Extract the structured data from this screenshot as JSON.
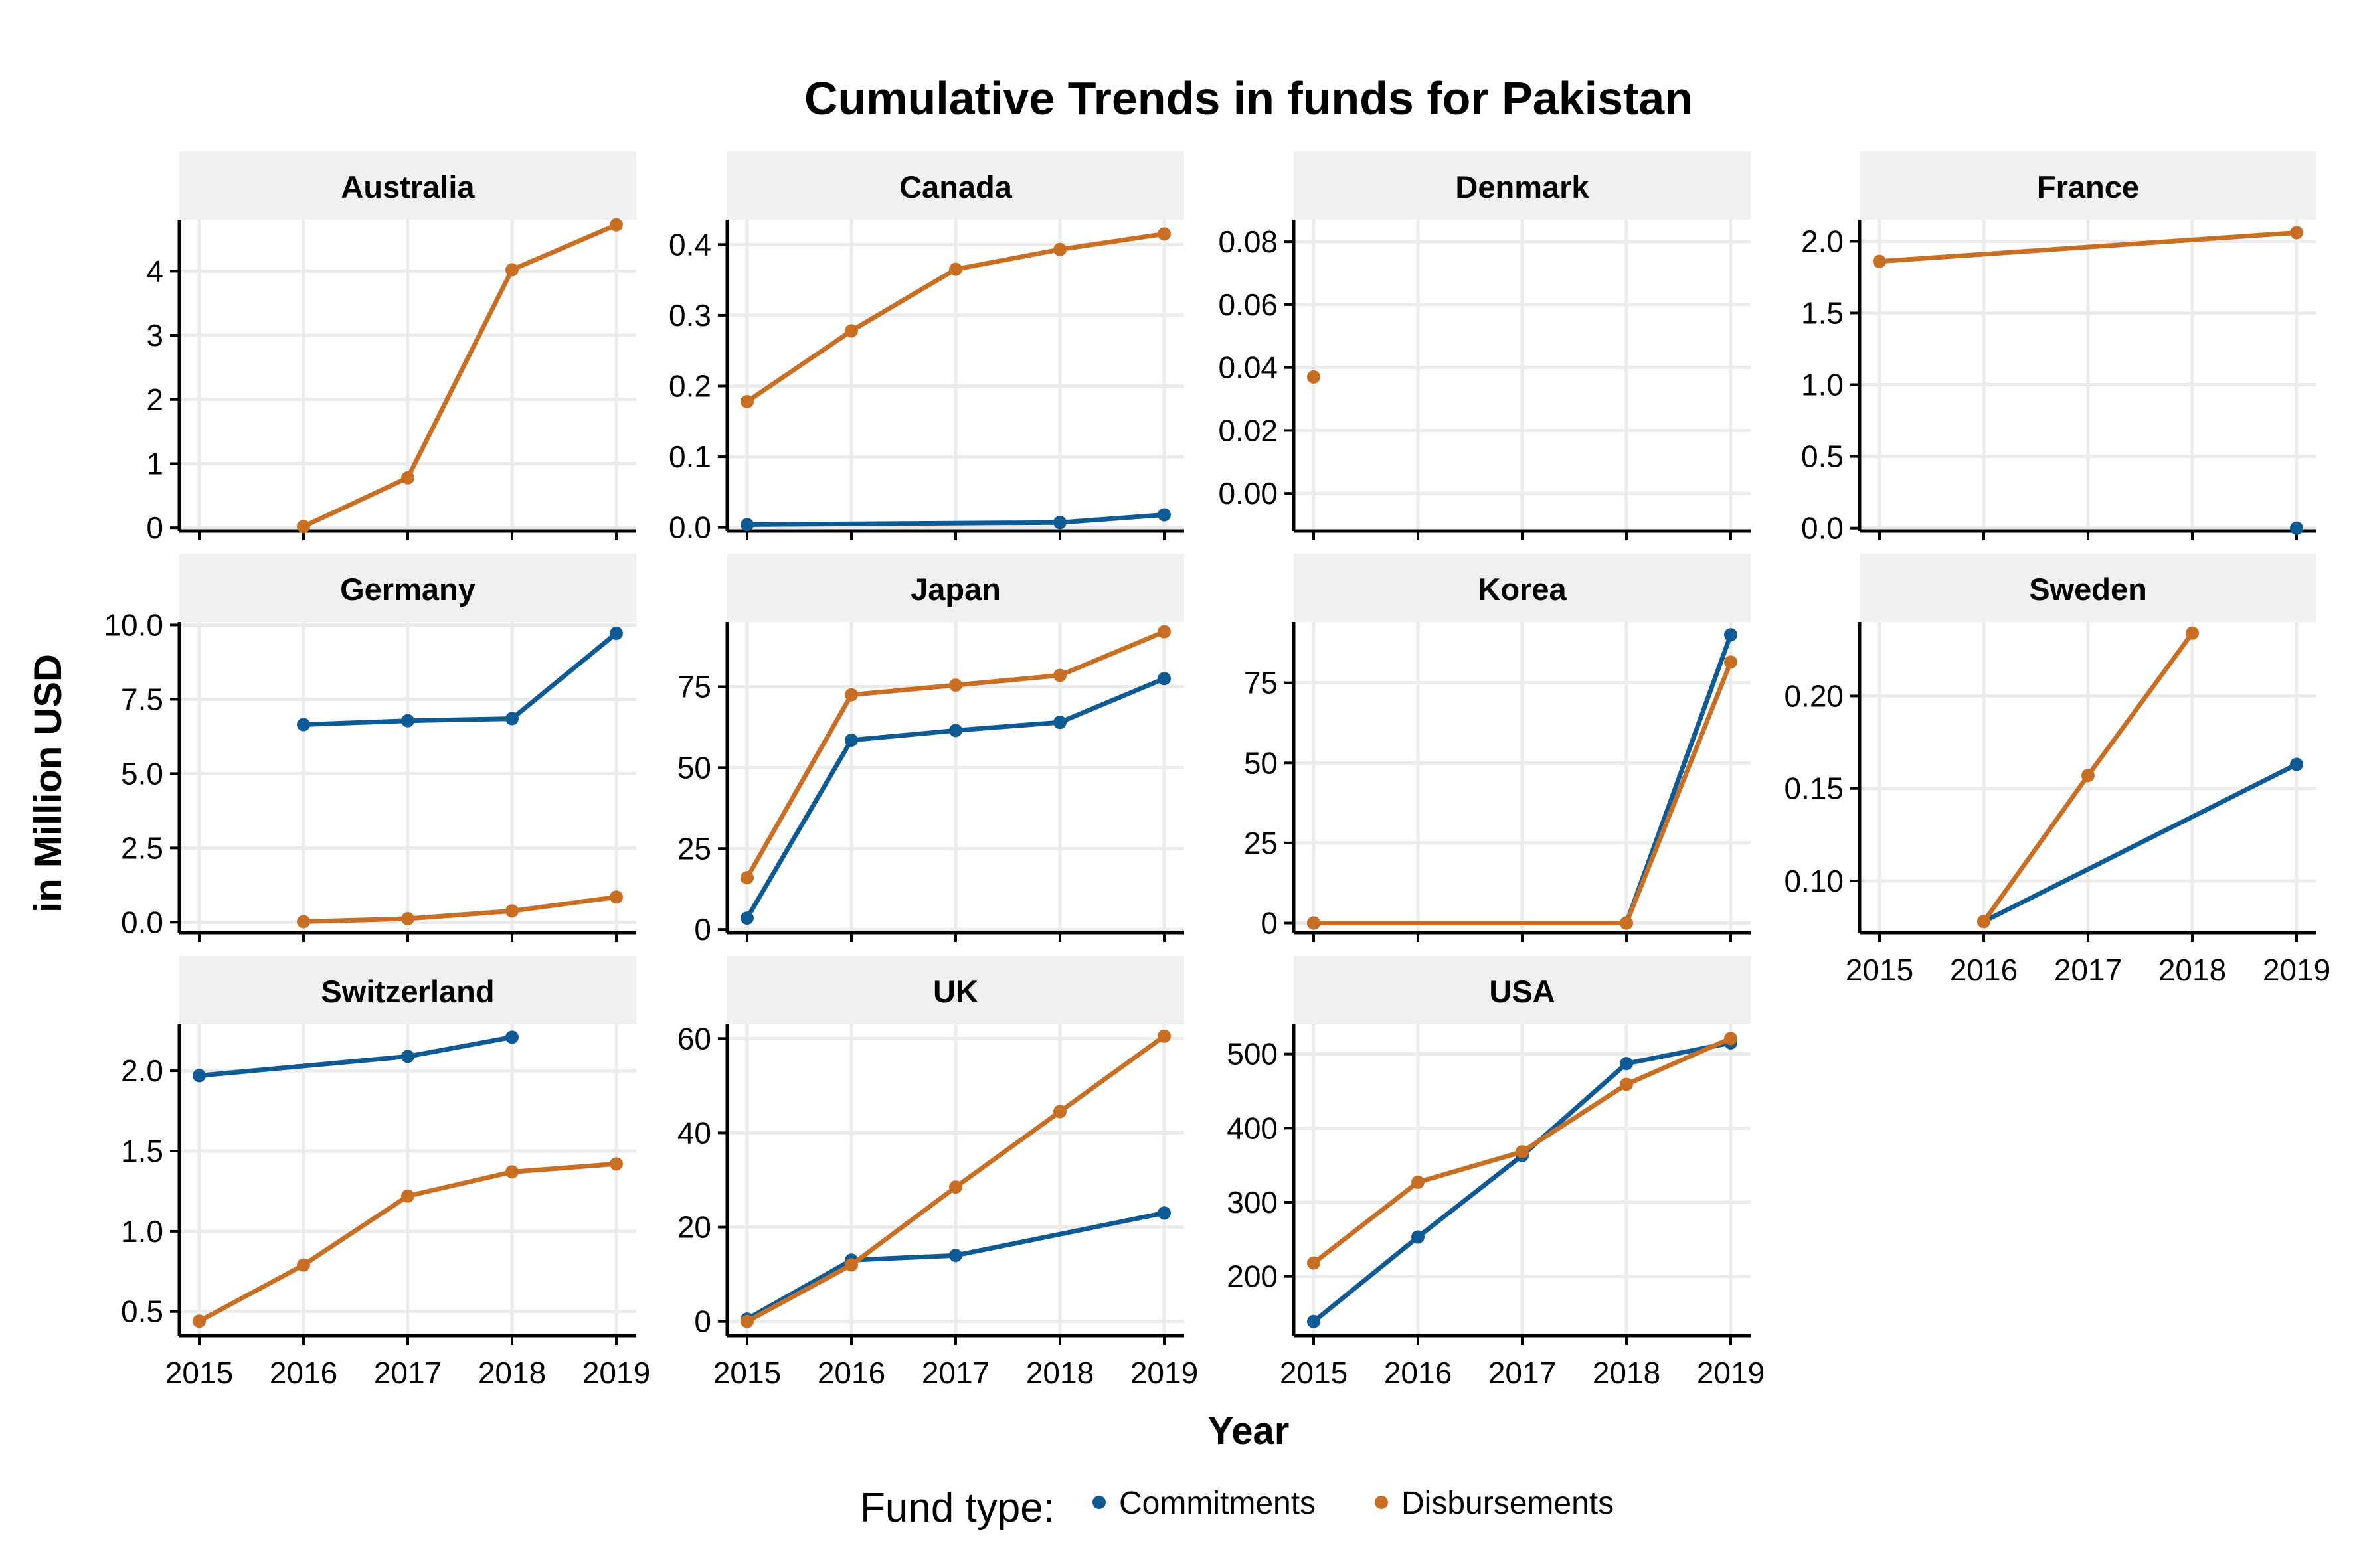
{
  "chart_data": {
    "type": "line",
    "title": "Cumulative Trends in funds for Pakistan",
    "xlabel": "Year",
    "ylabel": "in Million USD",
    "x": [
      2015,
      2016,
      2017,
      2018,
      2019
    ],
    "legend": {
      "title": "Fund type:",
      "position": "bottom",
      "entries": [
        {
          "name": "Commitments",
          "color": "#0E5A95"
        },
        {
          "name": "Disbursements",
          "color": "#C96F23"
        }
      ]
    },
    "grid": true,
    "panels": [
      {
        "name": "Australia",
        "ylim": [
          -0.05,
          4.8
        ],
        "yticks": [
          0,
          1,
          2,
          3,
          4
        ],
        "series": [
          {
            "name": "Commitments",
            "values": [
              null,
              null,
              null,
              null,
              null
            ]
          },
          {
            "name": "Disbursements",
            "values": [
              null,
              0.02,
              0.78,
              4.02,
              4.72
            ]
          }
        ]
      },
      {
        "name": "Canada",
        "ylim": [
          -0.005,
          0.435
        ],
        "yticks": [
          0.0,
          0.1,
          0.2,
          0.3,
          0.4
        ],
        "tick_labels": [
          "0.0",
          "0.1",
          "0.2",
          "0.3",
          "0.4"
        ],
        "series": [
          {
            "name": "Commitments",
            "values": [
              0.004,
              null,
              null,
              0.007,
              0.018
            ]
          },
          {
            "name": "Disbursements",
            "values": [
              0.178,
              0.278,
              0.365,
              0.393,
              0.415
            ]
          }
        ]
      },
      {
        "name": "Denmark",
        "ylim": [
          -0.012,
          0.087
        ],
        "yticks": [
          0.0,
          0.02,
          0.04,
          0.06,
          0.08
        ],
        "tick_labels": [
          "0.00",
          "0.02",
          "0.04",
          "0.06",
          "0.08"
        ],
        "series": [
          {
            "name": "Commitments",
            "values": [
              null,
              null,
              null,
              null,
              null
            ]
          },
          {
            "name": "Disbursements",
            "values": [
              0.037,
              null,
              null,
              null,
              null
            ]
          }
        ]
      },
      {
        "name": "France",
        "ylim": [
          -0.02,
          2.15
        ],
        "yticks": [
          0.0,
          0.5,
          1.0,
          1.5,
          2.0
        ],
        "tick_labels": [
          "0.0",
          "0.5",
          "1.0",
          "1.5",
          "2.0"
        ],
        "series": [
          {
            "name": "Commitments",
            "values": [
              null,
              null,
              null,
              null,
              0.0
            ]
          },
          {
            "name": "Disbursements",
            "values": [
              1.86,
              null,
              null,
              null,
              2.06
            ]
          }
        ]
      },
      {
        "name": "Germany",
        "ylim": [
          -0.35,
          10.1
        ],
        "yticks": [
          0.0,
          2.5,
          5.0,
          7.5,
          10.0
        ],
        "tick_labels": [
          "0.0",
          "2.5",
          "5.0",
          "7.5",
          "10.0"
        ],
        "series": [
          {
            "name": "Commitments",
            "values": [
              null,
              6.65,
              6.78,
              6.85,
              9.72
            ]
          },
          {
            "name": "Disbursements",
            "values": [
              null,
              0.02,
              0.12,
              0.38,
              0.85
            ]
          }
        ]
      },
      {
        "name": "Japan",
        "ylim": [
          -1,
          95
        ],
        "yticks": [
          0,
          25,
          50,
          75
        ],
        "series": [
          {
            "name": "Commitments",
            "values": [
              3.5,
              58.5,
              61.5,
              64.0,
              77.5
            ]
          },
          {
            "name": "Disbursements",
            "values": [
              16.0,
              72.5,
              75.5,
              78.5,
              92.0
            ]
          }
        ]
      },
      {
        "name": "Korea",
        "ylim": [
          -3,
          94
        ],
        "yticks": [
          0,
          25,
          50,
          75
        ],
        "series": [
          {
            "name": "Commitments",
            "values": [
              0,
              null,
              null,
              0,
              90.0
            ]
          },
          {
            "name": "Disbursements",
            "values": [
              0,
              null,
              null,
              0,
              81.5
            ]
          }
        ]
      },
      {
        "name": "Sweden",
        "ylim": [
          0.072,
          0.24
        ],
        "yticks": [
          0.1,
          0.15,
          0.2
        ],
        "tick_labels": [
          "0.10",
          "0.15",
          "0.20"
        ],
        "series": [
          {
            "name": "Commitments",
            "values": [
              null,
              0.078,
              null,
              null,
              0.163
            ]
          },
          {
            "name": "Disbursements",
            "values": [
              null,
              0.078,
              0.157,
              0.234,
              null
            ]
          }
        ]
      },
      {
        "name": "Switzerland",
        "ylim": [
          0.35,
          2.29
        ],
        "yticks": [
          0.5,
          1.0,
          1.5,
          2.0
        ],
        "tick_labels": [
          "0.5",
          "1.0",
          "1.5",
          "2.0"
        ],
        "series": [
          {
            "name": "Commitments",
            "values": [
              1.97,
              null,
              2.09,
              2.21,
              null
            ]
          },
          {
            "name": "Disbursements",
            "values": [
              0.44,
              0.79,
              1.22,
              1.37,
              1.42
            ]
          }
        ]
      },
      {
        "name": "UK",
        "ylim": [
          -3,
          63
        ],
        "yticks": [
          0,
          20,
          40,
          60
        ],
        "series": [
          {
            "name": "Commitments",
            "values": [
              0.5,
              13.0,
              14.0,
              null,
              23.0
            ]
          },
          {
            "name": "Disbursements",
            "values": [
              0.0,
              12.0,
              28.5,
              44.5,
              60.5
            ]
          }
        ]
      },
      {
        "name": "USA",
        "ylim": [
          120,
          540
        ],
        "yticks": [
          200,
          300,
          400,
          500
        ],
        "series": [
          {
            "name": "Commitments",
            "values": [
              139,
              253,
              363,
              487,
              515
            ]
          },
          {
            "name": "Disbursements",
            "values": [
              218,
              327,
              368,
              459,
              521
            ]
          }
        ]
      }
    ]
  }
}
